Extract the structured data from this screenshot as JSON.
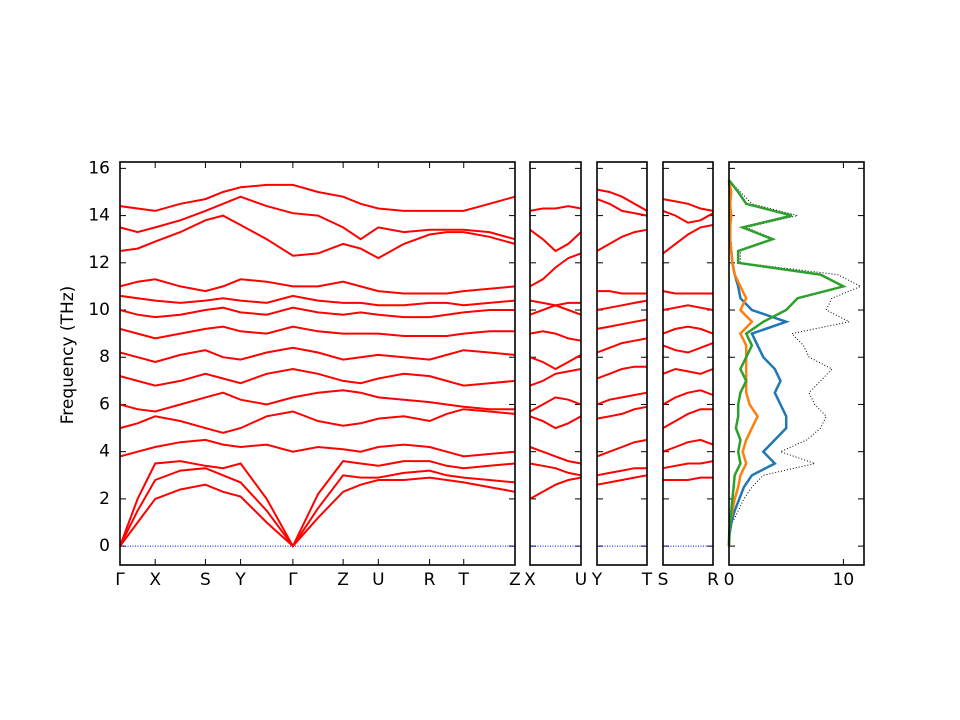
{
  "chart_data": [
    {
      "type": "bands",
      "ylabel": "Frequency (THz)",
      "color": "#ff0000",
      "hline": 0,
      "hline_color": "#0000ff",
      "xlim": [
        0,
        3.93
      ],
      "ylim": [
        -0.8,
        16.27
      ],
      "yticks": [
        0,
        2,
        4,
        6,
        8,
        10,
        12,
        14,
        16
      ],
      "xticks": [
        {
          "value": 0,
          "label": "Γ"
        },
        {
          "value": 0.35,
          "label": "X"
        },
        {
          "value": 0.85,
          "label": "S"
        },
        {
          "value": 1.2,
          "label": "Y"
        },
        {
          "value": 1.72,
          "label": "Γ"
        },
        {
          "value": 2.22,
          "label": "Z"
        },
        {
          "value": 2.57,
          "label": "U"
        },
        {
          "value": 3.08,
          "label": "R"
        },
        {
          "value": 3.42,
          "label": "T"
        },
        {
          "value": 3.93,
          "label": "Z"
        }
      ],
      "x": [
        0,
        0.175,
        0.35,
        0.6,
        0.85,
        1.025,
        1.2,
        1.46,
        1.72,
        1.97,
        2.22,
        2.395,
        2.57,
        2.825,
        3.08,
        3.25,
        3.42,
        3.675,
        3.93
      ],
      "bands": [
        [
          0,
          1.0,
          2.0,
          2.4,
          2.6,
          2.3,
          2.1,
          1.0,
          0,
          1.2,
          2.3,
          2.6,
          2.8,
          2.8,
          2.9,
          2.8,
          2.7,
          2.5,
          2.3
        ],
        [
          0,
          1.5,
          2.8,
          3.2,
          3.3,
          3.0,
          2.7,
          1.5,
          0,
          1.6,
          3.0,
          2.9,
          2.9,
          3.1,
          3.2,
          3.0,
          2.9,
          2.8,
          2.7
        ],
        [
          0,
          2.0,
          3.5,
          3.6,
          3.4,
          3.3,
          3.5,
          2.0,
          0,
          2.2,
          3.6,
          3.5,
          3.4,
          3.6,
          3.6,
          3.4,
          3.3,
          3.4,
          3.5
        ],
        [
          3.8,
          4.0,
          4.2,
          4.4,
          4.5,
          4.3,
          4.2,
          4.3,
          4.0,
          4.2,
          4.1,
          4.0,
          4.2,
          4.3,
          4.2,
          4.0,
          3.8,
          3.9,
          4.0
        ],
        [
          5.0,
          5.2,
          5.5,
          5.3,
          5.0,
          4.8,
          5.0,
          5.5,
          5.7,
          5.3,
          5.1,
          5.2,
          5.4,
          5.5,
          5.3,
          5.6,
          5.8,
          5.7,
          5.6
        ],
        [
          6.0,
          5.8,
          5.7,
          6.0,
          6.3,
          6.5,
          6.2,
          6.0,
          6.3,
          6.5,
          6.6,
          6.5,
          6.3,
          6.2,
          6.1,
          6.0,
          5.9,
          5.8,
          5.8
        ],
        [
          7.2,
          7.0,
          6.8,
          7.0,
          7.3,
          7.1,
          6.9,
          7.3,
          7.5,
          7.3,
          7.0,
          6.9,
          7.1,
          7.3,
          7.2,
          7.0,
          6.8,
          6.9,
          7.0
        ],
        [
          8.2,
          8.0,
          7.8,
          8.1,
          8.3,
          8.0,
          7.9,
          8.2,
          8.4,
          8.2,
          7.9,
          8.0,
          8.1,
          8.0,
          7.9,
          8.1,
          8.3,
          8.2,
          8.1
        ],
        [
          9.2,
          9.0,
          8.8,
          9.0,
          9.2,
          9.3,
          9.1,
          9.0,
          9.3,
          9.1,
          9.0,
          9.0,
          9.0,
          8.9,
          8.9,
          8.9,
          9.0,
          9.1,
          9.1
        ],
        [
          10.0,
          9.8,
          9.7,
          9.8,
          10.0,
          10.1,
          9.9,
          9.8,
          10.1,
          9.9,
          9.8,
          9.9,
          9.8,
          9.7,
          9.7,
          9.8,
          9.9,
          10.0,
          10.0
        ],
        [
          10.6,
          10.5,
          10.4,
          10.3,
          10.4,
          10.5,
          10.4,
          10.3,
          10.6,
          10.4,
          10.3,
          10.3,
          10.2,
          10.2,
          10.3,
          10.3,
          10.2,
          10.3,
          10.4
        ],
        [
          11.0,
          11.2,
          11.3,
          11.0,
          10.8,
          11.0,
          11.3,
          11.2,
          11.0,
          11.0,
          11.2,
          11.0,
          10.8,
          10.7,
          10.7,
          10.7,
          10.8,
          10.9,
          11.0
        ],
        [
          12.5,
          12.6,
          12.9,
          13.3,
          13.8,
          14.0,
          13.6,
          13.0,
          12.3,
          12.4,
          12.8,
          12.6,
          12.2,
          12.8,
          13.2,
          13.3,
          13.3,
          13.1,
          12.8
        ],
        [
          13.5,
          13.3,
          13.5,
          13.8,
          14.2,
          14.5,
          14.8,
          14.4,
          14.1,
          14.0,
          13.5,
          13.0,
          13.5,
          13.3,
          13.4,
          13.4,
          13.4,
          13.3,
          13.0
        ],
        [
          14.4,
          14.3,
          14.2,
          14.5,
          14.7,
          15.0,
          15.2,
          15.3,
          15.3,
          15.0,
          14.8,
          14.5,
          14.3,
          14.2,
          14.2,
          14.2,
          14.2,
          14.5,
          14.8
        ]
      ]
    },
    {
      "type": "bands",
      "color": "#ff0000",
      "hline": 0,
      "hline_color": "#0000ff",
      "xlim": [
        0,
        1
      ],
      "xticks": [
        {
          "value": 0,
          "label": "X"
        },
        {
          "value": 1,
          "label": "U"
        }
      ],
      "x": [
        0,
        0.25,
        0.5,
        0.75,
        1
      ],
      "bands": [
        [
          2.0,
          2.3,
          2.6,
          2.8,
          2.9
        ],
        [
          3.5,
          3.4,
          3.3,
          3.1,
          3.0
        ],
        [
          4.2,
          4.0,
          3.8,
          3.6,
          3.5
        ],
        [
          5.5,
          5.3,
          5.0,
          5.2,
          5.5
        ],
        [
          5.7,
          6.0,
          6.3,
          6.2,
          6.0
        ],
        [
          6.8,
          7.0,
          7.3,
          7.4,
          7.5
        ],
        [
          8.0,
          7.8,
          7.5,
          7.8,
          8.1
        ],
        [
          9.0,
          9.1,
          9.0,
          8.8,
          8.7
        ],
        [
          9.8,
          10.0,
          10.2,
          10.0,
          9.8
        ],
        [
          10.4,
          10.3,
          10.2,
          10.3,
          10.3
        ],
        [
          11.0,
          11.3,
          11.8,
          12.2,
          12.4
        ],
        [
          13.4,
          13.0,
          12.5,
          12.8,
          13.3
        ],
        [
          14.2,
          14.3,
          14.3,
          14.4,
          14.3
        ]
      ]
    },
    {
      "type": "bands",
      "color": "#ff0000",
      "hline": 0,
      "hline_color": "#0000ff",
      "xlim": [
        0,
        1
      ],
      "xticks": [
        {
          "value": 0,
          "label": "Y"
        },
        {
          "value": 1,
          "label": "T"
        }
      ],
      "x": [
        0,
        0.25,
        0.5,
        0.75,
        1
      ],
      "bands": [
        [
          2.6,
          2.7,
          2.8,
          2.9,
          3.0
        ],
        [
          3.0,
          3.1,
          3.2,
          3.3,
          3.3
        ],
        [
          3.8,
          4.0,
          4.2,
          4.4,
          4.5
        ],
        [
          5.4,
          5.5,
          5.6,
          5.8,
          5.9
        ],
        [
          6.0,
          6.2,
          6.3,
          6.4,
          6.5
        ],
        [
          7.1,
          7.3,
          7.5,
          7.6,
          7.6
        ],
        [
          8.2,
          8.4,
          8.6,
          8.7,
          8.8
        ],
        [
          9.2,
          9.3,
          9.4,
          9.5,
          9.6
        ],
        [
          10.0,
          10.1,
          10.2,
          10.3,
          10.4
        ],
        [
          10.8,
          10.8,
          10.7,
          10.7,
          10.7
        ],
        [
          12.5,
          12.8,
          13.1,
          13.3,
          13.4
        ],
        [
          14.7,
          14.5,
          14.2,
          14.1,
          14.0
        ],
        [
          15.1,
          15.0,
          14.8,
          14.5,
          14.2
        ]
      ]
    },
    {
      "type": "bands",
      "color": "#ff0000",
      "hline": 0,
      "hline_color": "#0000ff",
      "xlim": [
        0,
        1
      ],
      "xticks": [
        {
          "value": 0,
          "label": "S"
        },
        {
          "value": 1,
          "label": "R"
        }
      ],
      "x": [
        0,
        0.25,
        0.5,
        0.75,
        1
      ],
      "bands": [
        [
          2.8,
          2.8,
          2.8,
          2.9,
          2.9
        ],
        [
          3.3,
          3.4,
          3.5,
          3.5,
          3.6
        ],
        [
          4.0,
          4.2,
          4.4,
          4.5,
          4.3
        ],
        [
          5.0,
          5.3,
          5.6,
          5.8,
          5.8
        ],
        [
          6.0,
          6.3,
          6.5,
          6.6,
          6.4
        ],
        [
          7.3,
          7.5,
          7.4,
          7.3,
          7.5
        ],
        [
          8.5,
          8.3,
          8.2,
          8.4,
          8.6
        ],
        [
          9.0,
          9.2,
          9.3,
          9.2,
          9.0
        ],
        [
          10.0,
          10.1,
          10.2,
          10.1,
          10.0
        ],
        [
          10.8,
          10.7,
          10.7,
          10.7,
          10.7
        ],
        [
          12.4,
          12.8,
          13.2,
          13.5,
          13.6
        ],
        [
          14.2,
          14.0,
          13.7,
          13.8,
          14.1
        ],
        [
          14.7,
          14.6,
          14.5,
          14.3,
          14.2
        ]
      ]
    },
    {
      "type": "dos",
      "xlim": [
        0,
        11.8
      ],
      "xticks": [
        0,
        10
      ],
      "frequencies": [
        0,
        0.5,
        1,
        1.5,
        2,
        2.5,
        3,
        3.5,
        4,
        4.5,
        5,
        5.5,
        6,
        6.5,
        7,
        7.5,
        8,
        8.5,
        9,
        9.5,
        10,
        10.5,
        11,
        11.5,
        12,
        12.5,
        13,
        13.5,
        14,
        14.5,
        15,
        15.5
      ],
      "series": [
        {
          "color": "#000000",
          "dotted": true,
          "values": [
            0,
            0.1,
            0.3,
            0.8,
            1.3,
            2.0,
            3.0,
            7.5,
            4.5,
            6.8,
            8.0,
            8.5,
            7.5,
            7.0,
            8.0,
            9.0,
            7.0,
            6.5,
            5.5,
            10.5,
            8.5,
            9.0,
            11.5,
            9.5,
            1.0,
            1.0,
            4.0,
            1.5,
            6.0,
            2.0,
            1.0,
            0
          ]
        },
        {
          "color": "#1f77b4",
          "dotted": false,
          "values": [
            0,
            0.05,
            0.2,
            0.5,
            0.9,
            1.3,
            2.0,
            4.0,
            3.0,
            4.0,
            5.0,
            5.0,
            4.5,
            4.0,
            4.5,
            4.0,
            3.0,
            2.5,
            2.0,
            5.0,
            2.0,
            1.0,
            0.8,
            0.5,
            0.3,
            0.2,
            0.1,
            0.1,
            0.1,
            0.1,
            0.1,
            0
          ]
        },
        {
          "color": "#ff7f0e",
          "dotted": false,
          "values": [
            0,
            0.02,
            0.1,
            0.3,
            0.5,
            0.8,
            1.0,
            1.5,
            1.2,
            1.5,
            2.0,
            2.5,
            1.8,
            1.5,
            1.5,
            1.5,
            1.5,
            1.5,
            1.0,
            2.0,
            1.0,
            1.5,
            1.0,
            0.5,
            0.3,
            0.2,
            0.1,
            0.1,
            0.2,
            0.1,
            0.2,
            0
          ]
        },
        {
          "color": "#2ca02c",
          "dotted": false,
          "values": [
            0,
            0.02,
            0.1,
            0.2,
            0.3,
            0.4,
            0.5,
            1.0,
            0.8,
            1.0,
            0.6,
            0.8,
            0.8,
            1.0,
            1.5,
            1.0,
            1.5,
            2.0,
            1.5,
            3.0,
            5.0,
            6.0,
            10.0,
            8.0,
            0.8,
            0.8,
            3.8,
            1.2,
            5.5,
            1.5,
            0.8,
            0
          ]
        }
      ]
    }
  ]
}
